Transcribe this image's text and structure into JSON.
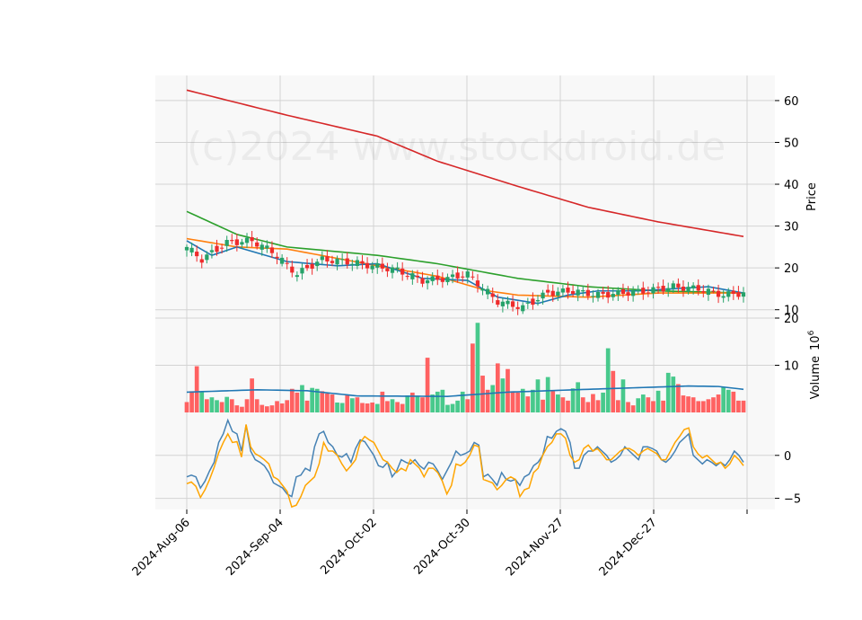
{
  "chart_data": {
    "type": "candlestick",
    "watermark": "(c)2024 www.stockdroid.de",
    "x_tick_labels": [
      "2024-Aug-06",
      "2024-Sep-04",
      "2024-Oct-02",
      "2024-Oct-30",
      "2024-Nov-27",
      "2024-Dec-27"
    ],
    "panels": {
      "price": {
        "ylabel": "Price",
        "ylim": [
          8,
          66
        ],
        "yticks": [
          10,
          20,
          30,
          40,
          50,
          60
        ],
        "close_anchors": [
          [
            0,
            25
          ],
          [
            3,
            22
          ],
          [
            8,
            26
          ],
          [
            13,
            26.5
          ],
          [
            17,
            24
          ],
          [
            22,
            18.5
          ],
          [
            27,
            22
          ],
          [
            32,
            21.5
          ],
          [
            37,
            20.5
          ],
          [
            42,
            19.5
          ],
          [
            47,
            17
          ],
          [
            52,
            17.5
          ],
          [
            56,
            18.5
          ],
          [
            62,
            12
          ],
          [
            67,
            10.5
          ],
          [
            72,
            14
          ],
          [
            77,
            14.5
          ],
          [
            82,
            13.5
          ],
          [
            87,
            14
          ],
          [
            92,
            14.5
          ],
          [
            97,
            15.5
          ],
          [
            102,
            15
          ],
          [
            107,
            13.5
          ],
          [
            111,
            14
          ]
        ],
        "overlays": [
          {
            "name": "ma200",
            "color": "#d62728",
            "anchors": [
              [
                0,
                62.5
              ],
              [
                10,
                59.5
              ],
              [
                20,
                56.5
              ],
              [
                38,
                51.5
              ],
              [
                50,
                45.5
              ],
              [
                66,
                39.5
              ],
              [
                80,
                34.5
              ],
              [
                94,
                31
              ],
              [
                111,
                27.5
              ]
            ]
          },
          {
            "name": "ma50",
            "color": "#2ca02c",
            "anchors": [
              [
                0,
                33.5
              ],
              [
                10,
                28
              ],
              [
                20,
                25
              ],
              [
                38,
                23
              ],
              [
                50,
                21
              ],
              [
                66,
                17.5
              ],
              [
                80,
                15.5
              ],
              [
                94,
                14.5
              ],
              [
                111,
                14
              ]
            ]
          },
          {
            "name": "ma20",
            "color": "#ff7f0e",
            "anchors": [
              [
                0,
                27
              ],
              [
                10,
                25
              ],
              [
                20,
                24.5
              ],
              [
                38,
                20.5
              ],
              [
                50,
                18
              ],
              [
                60,
                14.5
              ],
              [
                66,
                13.5
              ],
              [
                80,
                13
              ],
              [
                94,
                14
              ],
              [
                111,
                14
              ]
            ]
          },
          {
            "name": "ma10",
            "color": "#1f77b4",
            "anchors": [
              [
                0,
                26.5
              ],
              [
                5,
                23
              ],
              [
                10,
                25
              ],
              [
                20,
                21.5
              ],
              [
                30,
                20.5
              ],
              [
                38,
                21
              ],
              [
                47,
                17.5
              ],
              [
                56,
                17
              ],
              [
                62,
                13
              ],
              [
                70,
                11.5
              ],
              [
                76,
                13.5
              ],
              [
                82,
                14.5
              ],
              [
                90,
                14.5
              ],
              [
                97,
                15
              ],
              [
                104,
                15.5
              ],
              [
                111,
                14
              ]
            ]
          }
        ]
      },
      "volume": {
        "ylabel": "Volume",
        "unit": "10^6",
        "ylim": [
          0,
          20
        ],
        "yticks": [
          10,
          20
        ],
        "avg_line": {
          "name": "volume-avg",
          "color": "#1f77b4",
          "anchors": [
            [
              0,
              4.3
            ],
            [
              14,
              4.8
            ],
            [
              24,
              4.6
            ],
            [
              34,
              3.5
            ],
            [
              52,
              3.4
            ],
            [
              64,
              4.3
            ],
            [
              80,
              4.9
            ],
            [
              100,
              5.6
            ],
            [
              106,
              5.5
            ],
            [
              111,
              4.9
            ]
          ]
        },
        "bars": [
          2.2,
          4.5,
          9.8,
          4.3,
          2.8,
          3.2,
          2.6,
          2.2,
          3.3,
          2.8,
          1.5,
          1.2,
          2.8,
          7.2,
          2.8,
          1.6,
          1.3,
          1.5,
          2.4,
          1.9,
          2.6,
          5.0,
          4.2,
          5.8,
          2.5,
          5.2,
          5.0,
          4.5,
          4.0,
          3.8,
          2.1,
          2.0,
          3.8,
          3.0,
          3.2,
          2.0,
          1.9,
          2.1,
          1.8,
          4.4,
          2.4,
          2.8,
          2.2,
          1.8,
          3.6,
          4.2,
          3.5,
          3.2,
          11.6,
          3.8,
          4.4,
          4.8,
          1.6,
          1.8,
          2.5,
          4.4,
          2.8,
          14.6,
          19.0,
          7.8,
          4.8,
          5.8,
          10.4,
          7.2,
          9.2,
          4.5,
          4.2,
          5.0,
          3.4,
          4.8,
          7.0,
          2.7,
          7.5,
          4.5,
          3.8,
          3.2,
          2.5,
          5.1,
          6.4,
          3.2,
          2.2,
          3.9,
          2.6,
          4.2,
          13.6,
          8.8,
          2.6,
          7.0,
          2.2,
          1.5,
          3.0,
          3.8,
          3.2,
          2.4,
          4.6,
          2.5,
          8.4,
          7.6,
          6.0,
          3.6,
          3.4,
          3.2,
          2.4,
          2.4,
          2.8,
          3.2,
          3.8,
          5.4,
          4.8,
          4.4,
          2.5,
          2.5
        ],
        "bar_up": [
          false,
          false,
          false,
          true,
          false,
          true,
          true,
          false,
          true,
          false,
          false,
          false,
          false,
          false,
          false,
          false,
          false,
          false,
          false,
          false,
          false,
          false,
          false,
          true,
          false,
          true,
          true,
          false,
          false,
          false,
          true,
          true,
          false,
          true,
          false,
          false,
          false,
          false,
          true,
          false,
          false,
          true,
          false,
          false,
          true,
          false,
          true,
          false,
          false,
          true,
          true,
          true,
          true,
          true,
          true,
          true,
          false,
          false,
          true,
          false,
          false,
          true,
          false,
          true,
          false,
          false,
          false,
          true,
          false,
          true,
          true,
          false,
          true,
          false,
          true,
          false,
          false,
          true,
          true,
          false,
          false,
          false,
          false,
          true,
          true,
          false,
          false,
          true,
          false,
          false,
          true,
          true,
          false,
          false,
          true,
          false,
          true,
          true,
          false,
          false,
          false,
          false,
          false,
          false,
          false,
          false,
          false,
          true,
          true,
          false,
          false,
          false
        ]
      },
      "oscillator": {
        "ylim": [
          -6.3,
          5
        ],
        "yticks": [
          -5,
          0
        ],
        "lines": [
          {
            "name": "osc-main",
            "color": "#4682b4",
            "values": [
              -2.5,
              -2.3,
              -2.5,
              -3.8,
              -3.0,
              -1.8,
              -0.8,
              1.5,
              2.5,
              4.1,
              2.8,
              2.5,
              0.5,
              3.5,
              0.5,
              -0.5,
              -0.8,
              -1.2,
              -2.0,
              -3.2,
              -3.5,
              -3.8,
              -4.5,
              -4.8,
              -2.5,
              -2.3,
              -1.5,
              -1.8,
              1.0,
              2.5,
              2.8,
              1.5,
              1.0,
              0.0,
              -0.2,
              0.2,
              -0.8,
              0.8,
              1.8,
              1.6,
              0.8,
              0.0,
              -1.2,
              -1.4,
              -0.8,
              -2.5,
              -1.8,
              -0.5,
              -0.8,
              -1.0,
              -0.5,
              -1.2,
              -1.6,
              -0.8,
              -1.0,
              -1.8,
              -2.8,
              -1.8,
              -0.8,
              0.5,
              0.0,
              0.2,
              0.5,
              1.5,
              1.2,
              -2.5,
              -2.2,
              -2.8,
              -3.5,
              -2.0,
              -2.8,
              -3.0,
              -2.8,
              -3.5,
              -2.5,
              -2.2,
              -1.2,
              -0.8,
              0.0,
              2.2,
              2.0,
              2.8,
              3.1,
              2.8,
              1.5,
              -1.5,
              -1.5,
              0.0,
              0.5,
              0.5,
              1.0,
              0.5,
              0.0,
              -0.8,
              -0.5,
              0.0,
              1.0,
              0.5,
              0.0,
              -0.5,
              1.0,
              1.0,
              0.8,
              0.5,
              -0.5,
              -0.8,
              -0.3,
              0.5,
              1.5,
              2.0,
              2.5,
              0.0,
              -0.5,
              -1.0,
              -0.5,
              -0.8,
              -1.2,
              -0.8,
              -1.2,
              -0.5,
              0.5,
              0.0,
              -0.8
            ]
          },
          {
            "name": "osc-signal",
            "color": "#ffa500",
            "values": [
              -3.3,
              -3.1,
              -3.6,
              -4.9,
              -4.0,
              -2.8,
              -1.4,
              0.3,
              1.5,
              2.5,
              1.5,
              1.6,
              -0.2,
              3.6,
              1.0,
              0.2,
              -0.1,
              -0.5,
              -1.0,
              -2.5,
              -2.8,
              -3.5,
              -4.2,
              -6.0,
              -5.8,
              -4.8,
              -3.5,
              -3.0,
              -2.5,
              -1.0,
              1.5,
              0.5,
              0.5,
              0.0,
              -1.0,
              -1.8,
              -1.2,
              -0.5,
              1.5,
              2.2,
              1.8,
              1.5,
              0.5,
              -0.5,
              -0.8,
              -1.5,
              -2.0,
              -1.5,
              -1.8,
              -0.5,
              -1.0,
              -1.5,
              -2.5,
              -1.5,
              -1.5,
              -2.0,
              -3.0,
              -4.5,
              -3.5,
              -1.0,
              -1.2,
              -0.8,
              0.0,
              1.2,
              1.0,
              -2.8,
              -3.0,
              -3.2,
              -4.0,
              -3.5,
              -2.8,
              -2.5,
              -2.8,
              -4.8,
              -4.0,
              -3.8,
              -2.0,
              -1.5,
              0.0,
              1.0,
              1.5,
              2.5,
              2.5,
              2.0,
              0.0,
              -0.8,
              -0.5,
              0.8,
              1.2,
              0.5,
              0.8,
              0.2,
              -0.5,
              -0.5,
              0.0,
              0.5,
              0.8,
              0.8,
              0.5,
              0.0,
              0.5,
              0.8,
              0.5,
              0.2,
              -0.5,
              -0.5,
              0.5,
              1.5,
              2.2,
              3.0,
              3.2,
              1.0,
              0.2,
              -0.3,
              0.0,
              -0.5,
              -1.0,
              -0.8,
              -1.5,
              -1.0,
              0.0,
              -0.5,
              -1.2
            ]
          }
        ]
      }
    },
    "colors": {
      "up": "#26a269",
      "down": "#ee2c2c",
      "up_bar": "#48c98c",
      "down_bar": "#ff6161",
      "panel_bg": "#f8f8f8",
      "grid": "#d3d3d3"
    }
  }
}
